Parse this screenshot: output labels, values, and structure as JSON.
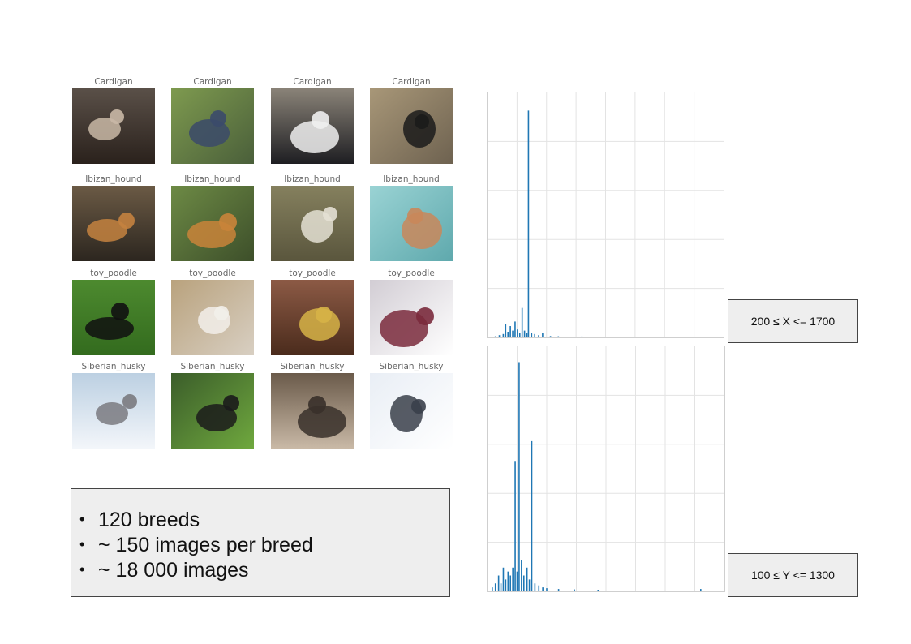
{
  "grid": {
    "rows": [
      {
        "label": "Cardigan",
        "icon": "dog-photo-icon"
      },
      {
        "label": "Ibizan_hound",
        "icon": "dog-photo-icon"
      },
      {
        "label": "toy_poodle",
        "icon": "dog-photo-icon"
      },
      {
        "label": "Siberian_husky",
        "icon": "dog-photo-icon"
      }
    ]
  },
  "stats": {
    "items": [
      "120 breeds",
      "~ 150 images per breed",
      "~ 18 000 images"
    ]
  },
  "width_plot": {
    "range_label": "200 ≤  X <= 1700",
    "chart_data": {
      "type": "bar",
      "xlim": [
        0,
        3000
      ],
      "x": [
        100,
        150,
        200,
        230,
        260,
        290,
        320,
        350,
        380,
        410,
        440,
        470,
        500,
        520,
        560,
        600,
        650,
        700,
        800,
        900,
        1200,
        2700
      ],
      "values": [
        0.5,
        1,
        1.5,
        6,
        2.5,
        5,
        3,
        7,
        3.5,
        2,
        13,
        3,
        2,
        100,
        2,
        1.5,
        1,
        1.8,
        0.6,
        0.5,
        0.4,
        0.3
      ],
      "ylim": [
        0,
        108
      ],
      "grid": true,
      "color": "#1f77b4"
    }
  },
  "height_plot": {
    "range_label": "100 ≤  Y <= 1300",
    "chart_data": {
      "type": "bar",
      "xlim": [
        0,
        3000
      ],
      "x": [
        60,
        100,
        140,
        170,
        200,
        230,
        260,
        290,
        320,
        350,
        375,
        400,
        430,
        460,
        500,
        530,
        560,
        600,
        650,
        700,
        750,
        900,
        1100,
        1400,
        2700
      ],
      "values": [
        1,
        2,
        4,
        2,
        6,
        3,
        5,
        4,
        6,
        33,
        5,
        58,
        8,
        4,
        6,
        3,
        38,
        2,
        1.5,
        1,
        0.8,
        0.6,
        0.5,
        0.4,
        0.6
      ],
      "ylim": [
        0,
        62
      ],
      "grid": true,
      "color": "#1f77b4"
    }
  },
  "colors": {
    "bar": "#1f77b4",
    "box_bg": "#eeeeee",
    "box_border": "#444444"
  }
}
